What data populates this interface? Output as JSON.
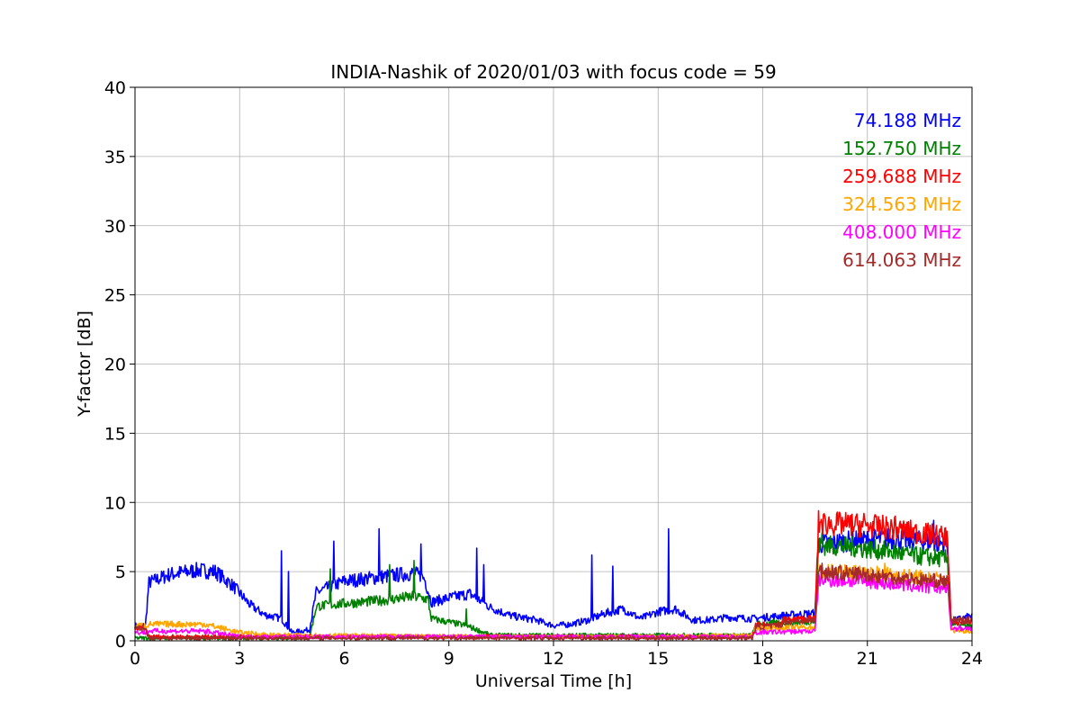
{
  "chart_data": {
    "type": "line",
    "title": "INDIA-Nashik of 2020/01/03 with focus code = 59",
    "xlabel": "Universal Time [h]",
    "ylabel": "Y-factor [dB]",
    "xlim": [
      0,
      24
    ],
    "ylim": [
      0,
      40
    ],
    "xticks": [
      0,
      3,
      6,
      9,
      12,
      15,
      18,
      21,
      24
    ],
    "yticks": [
      0,
      5,
      10,
      15,
      20,
      25,
      30,
      35,
      40
    ],
    "grid": true,
    "legend_position": "top-right",
    "series": [
      {
        "name": "74.188 MHz",
        "color": "#0000ff",
        "points": [
          [
            0,
            1.1
          ],
          [
            0.3,
            1.1
          ],
          [
            0.4,
            4.2
          ],
          [
            1.0,
            4.8
          ],
          [
            1.8,
            5.1
          ],
          [
            2.3,
            5.0
          ],
          [
            2.8,
            4.0
          ],
          [
            3.3,
            2.6
          ],
          [
            3.7,
            1.9
          ],
          [
            4.2,
            1.6
          ],
          [
            4.5,
            0.6
          ],
          [
            5.0,
            0.8
          ],
          [
            5.2,
            3.5
          ],
          [
            6.0,
            4.3
          ],
          [
            7.0,
            4.6
          ],
          [
            8.0,
            4.9
          ],
          [
            8.3,
            4.5
          ],
          [
            8.5,
            2.8
          ],
          [
            9.0,
            3.1
          ],
          [
            9.6,
            3.4
          ],
          [
            10.2,
            2.4
          ],
          [
            10.8,
            1.8
          ],
          [
            11.5,
            1.5
          ],
          [
            12.0,
            1.1
          ],
          [
            12.5,
            1.2
          ],
          [
            13.0,
            1.5
          ],
          [
            13.5,
            2.0
          ],
          [
            14.0,
            2.3
          ],
          [
            14.5,
            1.6
          ],
          [
            15.0,
            2.1
          ],
          [
            15.5,
            2.3
          ],
          [
            16.0,
            1.5
          ],
          [
            16.5,
            1.5
          ],
          [
            17.0,
            1.7
          ],
          [
            17.7,
            1.6
          ],
          [
            18.5,
            1.8
          ],
          [
            19.5,
            2.0
          ],
          [
            19.6,
            7.0
          ],
          [
            20.5,
            7.2
          ],
          [
            21.5,
            7.4
          ],
          [
            22.5,
            7.2
          ],
          [
            23.3,
            7.0
          ],
          [
            23.4,
            1.4
          ],
          [
            24,
            1.8
          ]
        ],
        "spikes": [
          [
            4.2,
            6.5
          ],
          [
            4.4,
            5.0
          ],
          [
            5.7,
            7.2
          ],
          [
            7.0,
            8.1
          ],
          [
            8.2,
            7.0
          ],
          [
            9.8,
            6.7
          ],
          [
            10.0,
            5.5
          ],
          [
            13.1,
            6.2
          ],
          [
            13.7,
            5.4
          ],
          [
            15.3,
            8.1
          ],
          [
            22.9,
            8.7
          ]
        ]
      },
      {
        "name": "152.750 MHz",
        "color": "#008000",
        "points": [
          [
            0,
            0.2
          ],
          [
            5.0,
            0.2
          ],
          [
            5.2,
            2.5
          ],
          [
            6.0,
            2.7
          ],
          [
            7.0,
            2.9
          ],
          [
            8.0,
            3.2
          ],
          [
            8.4,
            3.0
          ],
          [
            8.5,
            1.6
          ],
          [
            9.5,
            1.1
          ],
          [
            10.0,
            0.6
          ],
          [
            10.2,
            0.4
          ],
          [
            17.7,
            0.4
          ],
          [
            17.8,
            1.2
          ],
          [
            18.5,
            1.3
          ],
          [
            19.5,
            1.4
          ],
          [
            19.6,
            6.9
          ],
          [
            20.5,
            6.8
          ],
          [
            21.5,
            6.5
          ],
          [
            22.5,
            6.1
          ],
          [
            23.3,
            5.9
          ],
          [
            23.4,
            1.2
          ],
          [
            24,
            1.0
          ]
        ],
        "spikes": [
          [
            5.6,
            5.2
          ],
          [
            7.3,
            5.5
          ],
          [
            8.0,
            5.8
          ],
          [
            9.5,
            2.3
          ],
          [
            19.7,
            7.8
          ]
        ]
      },
      {
        "name": "259.688 MHz",
        "color": "#ff0000",
        "points": [
          [
            0,
            0.9
          ],
          [
            0.3,
            0.9
          ],
          [
            0.4,
            0.3
          ],
          [
            17.7,
            0.3
          ],
          [
            17.8,
            1.1
          ],
          [
            18.5,
            1.2
          ],
          [
            18.6,
            1.5
          ],
          [
            19.5,
            1.6
          ],
          [
            19.6,
            8.5
          ],
          [
            20.5,
            8.4
          ],
          [
            21.5,
            8.2
          ],
          [
            22.5,
            7.8
          ],
          [
            23.3,
            7.5
          ],
          [
            23.4,
            1.3
          ],
          [
            24,
            1.4
          ]
        ],
        "spikes": [
          [
            19.6,
            9.4
          ],
          [
            20.9,
            9.2
          ],
          [
            21.8,
            9.0
          ]
        ]
      },
      {
        "name": "324.563 MHz",
        "color": "#ffa500",
        "points": [
          [
            0,
            1.1
          ],
          [
            0.3,
            1.1
          ],
          [
            0.4,
            1.2
          ],
          [
            2.0,
            1.2
          ],
          [
            2.5,
            0.9
          ],
          [
            3.0,
            0.6
          ],
          [
            4.0,
            0.4
          ],
          [
            5.0,
            0.4
          ],
          [
            10.0,
            0.3
          ],
          [
            15.0,
            0.3
          ],
          [
            17.7,
            0.4
          ],
          [
            17.8,
            0.9
          ],
          [
            19.5,
            1.0
          ],
          [
            19.6,
            5.0
          ],
          [
            21.0,
            4.9
          ],
          [
            22.5,
            4.6
          ],
          [
            23.3,
            4.4
          ],
          [
            23.4,
            0.8
          ],
          [
            24,
            0.7
          ]
        ],
        "spikes": [
          [
            21.5,
            5.6
          ]
        ]
      },
      {
        "name": "408.000 MHz",
        "color": "#ff00ff",
        "points": [
          [
            0,
            0.6
          ],
          [
            0.3,
            0.6
          ],
          [
            0.4,
            0.7
          ],
          [
            2.0,
            0.7
          ],
          [
            2.5,
            0.5
          ],
          [
            3.0,
            0.3
          ],
          [
            17.7,
            0.3
          ],
          [
            17.8,
            0.6
          ],
          [
            19.5,
            0.7
          ],
          [
            19.6,
            4.4
          ],
          [
            21.0,
            4.3
          ],
          [
            22.5,
            3.9
          ],
          [
            23.3,
            3.8
          ],
          [
            23.4,
            0.9
          ],
          [
            24,
            0.9
          ]
        ],
        "spikes": []
      },
      {
        "name": "614.063 MHz",
        "color": "#a52a2a",
        "points": [
          [
            0,
            0.9
          ],
          [
            0.3,
            0.9
          ],
          [
            0.4,
            0.2
          ],
          [
            17.7,
            0.2
          ],
          [
            17.8,
            1.0
          ],
          [
            18.5,
            1.1
          ],
          [
            18.6,
            1.4
          ],
          [
            19.5,
            1.5
          ],
          [
            19.6,
            5.0
          ],
          [
            21.0,
            4.8
          ],
          [
            22.5,
            4.4
          ],
          [
            23.3,
            4.3
          ],
          [
            23.4,
            1.5
          ],
          [
            24,
            1.5
          ]
        ],
        "spikes": [
          [
            19.7,
            5.6
          ]
        ]
      }
    ]
  }
}
